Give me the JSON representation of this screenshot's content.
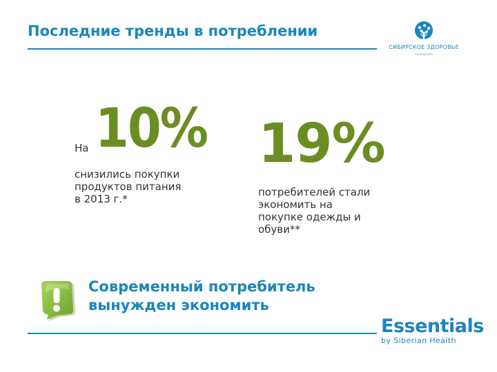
{
  "header": {
    "title": "Последние тренды в потреблении"
  },
  "logo": {
    "name": "СИБИРСКОЕ ЗДОРОВЬЕ",
    "sub": "корпорация"
  },
  "stats": [
    {
      "prefix": "На",
      "value": "10%",
      "desc_lines": [
        "снизились покупки",
        "продуктов питания",
        "в 2013 г.*"
      ]
    },
    {
      "value": "19%",
      "desc_lines": [
        "потребителей стали",
        "экономить на",
        "покупке одежды и",
        "обуви**"
      ]
    }
  ],
  "conclusion": {
    "lines": [
      "Современный потребитель",
      "вынужден экономить"
    ]
  },
  "brand": {
    "name": "Essentials",
    "sub": "by Siberian Health"
  },
  "colors": {
    "primary": "#1a86bd",
    "accent_green": "#6b8e23",
    "icon_green": "#8dc63f",
    "text": "#333333"
  },
  "icons": {
    "alert": "exclamation-badge-icon",
    "logo": "tree-logo-icon"
  }
}
